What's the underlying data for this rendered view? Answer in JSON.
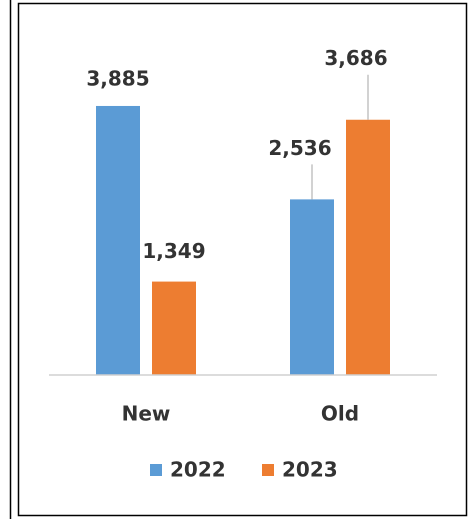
{
  "chart_data": {
    "type": "bar",
    "categories": [
      "New",
      "Old"
    ],
    "series": [
      {
        "name": "2022",
        "color": "#5b9bd5",
        "values": [
          3885,
          2536
        ],
        "value_labels": [
          "3,885",
          "2,536"
        ]
      },
      {
        "name": "2023",
        "color": "#ed7d31",
        "values": [
          1349,
          3686
        ],
        "value_labels": [
          "1,349",
          "3,686"
        ]
      }
    ],
    "ylim": [
      0,
      4000
    ]
  }
}
